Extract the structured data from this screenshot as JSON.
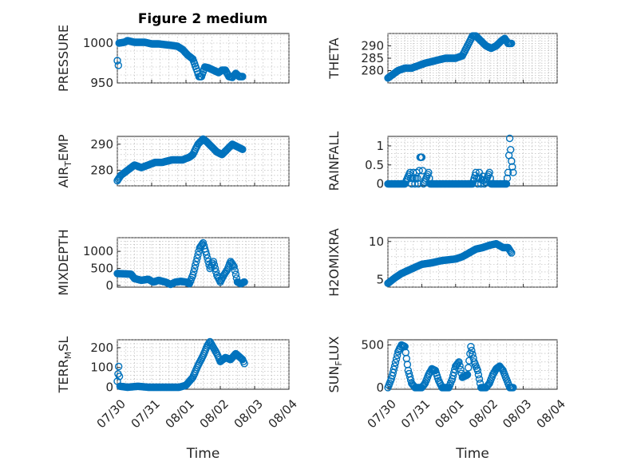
{
  "figure": {
    "title": "Figure 2 medium",
    "marker_color": "#0072BD"
  },
  "chart_data": [
    {
      "type": "scatter",
      "ylabel_main": "PRESSURE",
      "ylabel_sub": "",
      "ylabel_tail": "",
      "ylim": [
        950,
        1012
      ],
      "yticks": [
        "950",
        "1000"
      ],
      "ytick_values": [
        950,
        1000
      ],
      "xlim": [
        0,
        5
      ],
      "x": [],
      "y": [],
      "anchors": [
        [
          0.0,
          978
        ],
        [
          0.03,
          972
        ],
        [
          0.05,
          1000
        ],
        [
          0.2,
          1001
        ],
        [
          0.3,
          1003
        ],
        [
          0.5,
          1001
        ],
        [
          0.8,
          1001
        ],
        [
          1.0,
          999
        ],
        [
          1.2,
          999
        ],
        [
          1.4,
          998
        ],
        [
          1.6,
          997
        ],
        [
          1.75,
          996
        ],
        [
          1.9,
          992
        ],
        [
          2.05,
          985
        ],
        [
          2.2,
          980
        ],
        [
          2.3,
          968
        ],
        [
          2.38,
          958
        ],
        [
          2.45,
          958
        ],
        [
          2.55,
          970
        ],
        [
          2.65,
          969
        ],
        [
          2.8,
          966
        ],
        [
          2.95,
          963
        ],
        [
          3.05,
          966
        ],
        [
          3.15,
          966
        ],
        [
          3.25,
          958
        ],
        [
          3.35,
          957
        ],
        [
          3.45,
          962
        ],
        [
          3.55,
          958
        ],
        [
          3.65,
          958
        ]
      ]
    },
    {
      "type": "scatter",
      "ylabel_main": "THETA",
      "ylabel_sub": "",
      "ylabel_tail": "",
      "ylim": [
        275,
        295
      ],
      "yticks": [
        "280",
        "285",
        "290"
      ],
      "ytick_values": [
        280,
        285,
        290
      ],
      "xlim": [
        0,
        5
      ],
      "x": [],
      "y": [],
      "anchors": [
        [
          0.0,
          277
        ],
        [
          0.1,
          278
        ],
        [
          0.3,
          280
        ],
        [
          0.5,
          281
        ],
        [
          0.7,
          281
        ],
        [
          0.9,
          282
        ],
        [
          1.1,
          283
        ],
        [
          1.4,
          284
        ],
        [
          1.7,
          285
        ],
        [
          2.0,
          285
        ],
        [
          2.2,
          286
        ],
        [
          2.35,
          290
        ],
        [
          2.5,
          294
        ],
        [
          2.6,
          294
        ],
        [
          2.75,
          292
        ],
        [
          2.9,
          290
        ],
        [
          3.05,
          289
        ],
        [
          3.2,
          290
        ],
        [
          3.35,
          292
        ],
        [
          3.45,
          293
        ],
        [
          3.55,
          291
        ],
        [
          3.65,
          291
        ]
      ]
    },
    {
      "type": "scatter",
      "ylabel_main": "AIR",
      "ylabel_sub": "T",
      "ylabel_tail": "EMP",
      "ylim": [
        274,
        293
      ],
      "yticks": [
        "280",
        "290"
      ],
      "ytick_values": [
        280,
        290
      ],
      "xlim": [
        0,
        5
      ],
      "x": [],
      "y": [],
      "anchors": [
        [
          0.0,
          276
        ],
        [
          0.05,
          277
        ],
        [
          0.1,
          278
        ],
        [
          0.3,
          280
        ],
        [
          0.5,
          282
        ],
        [
          0.7,
          281
        ],
        [
          0.9,
          282
        ],
        [
          1.1,
          283
        ],
        [
          1.3,
          283
        ],
        [
          1.6,
          284
        ],
        [
          1.9,
          284
        ],
        [
          2.1,
          285
        ],
        [
          2.2,
          286
        ],
        [
          2.35,
          290
        ],
        [
          2.5,
          292
        ],
        [
          2.6,
          291
        ],
        [
          2.75,
          289
        ],
        [
          2.9,
          287
        ],
        [
          3.05,
          286
        ],
        [
          3.2,
          288
        ],
        [
          3.35,
          290
        ],
        [
          3.5,
          289
        ],
        [
          3.65,
          288
        ]
      ]
    },
    {
      "type": "scatter",
      "ylabel_main": "RAINFALL",
      "ylabel_sub": "",
      "ylabel_tail": "",
      "ylim": [
        -0.05,
        1.25
      ],
      "yticks": [
        "0",
        "0.5",
        "1"
      ],
      "ytick_values": [
        0,
        0.5,
        1
      ],
      "xlim": [
        0,
        5
      ],
      "x": [],
      "y": [],
      "anchors": [
        [
          0.0,
          0
        ],
        [
          0.5,
          0
        ],
        [
          0.65,
          0.3
        ],
        [
          0.7,
          0
        ],
        [
          0.75,
          0.3
        ],
        [
          0.8,
          0
        ],
        [
          0.85,
          0.3
        ],
        [
          0.9,
          0
        ],
        [
          0.95,
          0.7
        ],
        [
          1.0,
          0.7
        ],
        [
          1.05,
          0
        ],
        [
          1.2,
          0.3
        ],
        [
          1.25,
          0
        ],
        [
          2.5,
          0
        ],
        [
          2.6,
          0.3
        ],
        [
          2.65,
          0
        ],
        [
          2.7,
          0.3
        ],
        [
          2.75,
          0
        ],
        [
          2.8,
          0.2
        ],
        [
          2.85,
          0
        ],
        [
          3.0,
          0.3
        ],
        [
          3.05,
          0
        ],
        [
          3.5,
          0
        ],
        [
          3.55,
          0.3
        ],
        [
          3.6,
          1.2
        ],
        [
          3.65,
          0.6
        ],
        [
          3.7,
          0.3
        ]
      ]
    },
    {
      "type": "scatter",
      "ylabel_main": "MIXDEPTH",
      "ylabel_sub": "",
      "ylabel_tail": "",
      "ylim": [
        -50,
        1400
      ],
      "yticks": [
        "0",
        "500",
        "1000"
      ],
      "ytick_values": [
        0,
        500,
        1000
      ],
      "xlim": [
        0,
        5
      ],
      "x": [],
      "y": [],
      "anchors": [
        [
          0.0,
          350
        ],
        [
          0.2,
          340
        ],
        [
          0.4,
          330
        ],
        [
          0.5,
          200
        ],
        [
          0.7,
          150
        ],
        [
          0.9,
          180
        ],
        [
          1.05,
          100
        ],
        [
          1.2,
          150
        ],
        [
          1.4,
          100
        ],
        [
          1.55,
          30
        ],
        [
          1.7,
          100
        ],
        [
          1.85,
          120
        ],
        [
          2.0,
          100
        ],
        [
          2.1,
          50
        ],
        [
          2.2,
          300
        ],
        [
          2.3,
          700
        ],
        [
          2.4,
          1100
        ],
        [
          2.5,
          1250
        ],
        [
          2.6,
          900
        ],
        [
          2.7,
          500
        ],
        [
          2.8,
          700
        ],
        [
          2.9,
          300
        ],
        [
          3.0,
          100
        ],
        [
          3.1,
          300
        ],
        [
          3.2,
          450
        ],
        [
          3.3,
          700
        ],
        [
          3.4,
          550
        ],
        [
          3.5,
          100
        ],
        [
          3.6,
          50
        ],
        [
          3.7,
          100
        ]
      ]
    },
    {
      "type": "scatter",
      "ylabel_main": "H2OMIXRA",
      "ylabel_sub": "",
      "ylabel_tail": "",
      "ylim": [
        4,
        10.5
      ],
      "yticks": [
        "5",
        "10"
      ],
      "ytick_values": [
        5,
        10
      ],
      "xlim": [
        0,
        5
      ],
      "x": [],
      "y": [],
      "anchors": [
        [
          0.0,
          4.5
        ],
        [
          0.2,
          5.2
        ],
        [
          0.4,
          5.8
        ],
        [
          0.6,
          6.2
        ],
        [
          0.8,
          6.6
        ],
        [
          1.0,
          7.0
        ],
        [
          1.3,
          7.2
        ],
        [
          1.6,
          7.5
        ],
        [
          2.0,
          7.7
        ],
        [
          2.2,
          8.0
        ],
        [
          2.4,
          8.5
        ],
        [
          2.6,
          9.0
        ],
        [
          2.8,
          9.2
        ],
        [
          3.0,
          9.5
        ],
        [
          3.2,
          9.7
        ],
        [
          3.4,
          9.2
        ],
        [
          3.55,
          9.2
        ],
        [
          3.65,
          8.5
        ]
      ]
    },
    {
      "type": "scatter",
      "ylabel_main": "TERR",
      "ylabel_sub": "M",
      "ylabel_tail": "SL",
      "ylim": [
        -10,
        240
      ],
      "yticks": [
        "0",
        "100",
        "200"
      ],
      "ytick_values": [
        0,
        100,
        200
      ],
      "xlim": [
        0,
        5
      ],
      "x": [],
      "y": [],
      "anchors": [
        [
          0.0,
          30
        ],
        [
          0.04,
          105
        ],
        [
          0.08,
          5
        ],
        [
          0.3,
          0
        ],
        [
          0.6,
          5
        ],
        [
          0.9,
          0
        ],
        [
          1.2,
          0
        ],
        [
          1.5,
          0
        ],
        [
          1.8,
          0
        ],
        [
          2.0,
          10
        ],
        [
          2.2,
          50
        ],
        [
          2.35,
          110
        ],
        [
          2.5,
          160
        ],
        [
          2.62,
          210
        ],
        [
          2.7,
          230
        ],
        [
          2.8,
          200
        ],
        [
          2.9,
          170
        ],
        [
          3.0,
          130
        ],
        [
          3.15,
          150
        ],
        [
          3.3,
          140
        ],
        [
          3.45,
          170
        ],
        [
          3.55,
          155
        ],
        [
          3.65,
          140
        ],
        [
          3.7,
          120
        ]
      ]
    },
    {
      "type": "scatter",
      "ylabel_main": "SUN",
      "ylabel_sub": "F",
      "ylabel_tail": "LUX",
      "ylim": [
        -20,
        560
      ],
      "yticks": [
        "0",
        "500"
      ],
      "ytick_values": [
        0,
        500
      ],
      "xlim": [
        0,
        5
      ],
      "x": [],
      "y": [],
      "anchors": [
        [
          0.0,
          0
        ],
        [
          0.1,
          100
        ],
        [
          0.2,
          250
        ],
        [
          0.3,
          420
        ],
        [
          0.4,
          500
        ],
        [
          0.5,
          480
        ],
        [
          0.6,
          200
        ],
        [
          0.7,
          50
        ],
        [
          0.8,
          0
        ],
        [
          1.0,
          0
        ],
        [
          1.1,
          50
        ],
        [
          1.2,
          150
        ],
        [
          1.3,
          220
        ],
        [
          1.4,
          200
        ],
        [
          1.5,
          80
        ],
        [
          1.6,
          0
        ],
        [
          1.8,
          0
        ],
        [
          1.9,
          100
        ],
        [
          2.0,
          250
        ],
        [
          2.1,
          300
        ],
        [
          2.2,
          120
        ],
        [
          2.35,
          150
        ],
        [
          2.45,
          480
        ],
        [
          2.55,
          300
        ],
        [
          2.65,
          200
        ],
        [
          2.75,
          0
        ],
        [
          2.9,
          0
        ],
        [
          3.0,
          50
        ],
        [
          3.1,
          150
        ],
        [
          3.2,
          220
        ],
        [
          3.3,
          250
        ],
        [
          3.4,
          200
        ],
        [
          3.5,
          100
        ],
        [
          3.6,
          0
        ],
        [
          3.7,
          0
        ]
      ]
    }
  ],
  "x_axis": {
    "label": "Time",
    "tick_labels": [
      "07/30",
      "07/31",
      "08/01",
      "08/02",
      "08/03",
      "08/04"
    ],
    "tick_values": [
      0,
      1,
      2,
      3,
      4,
      5
    ]
  }
}
